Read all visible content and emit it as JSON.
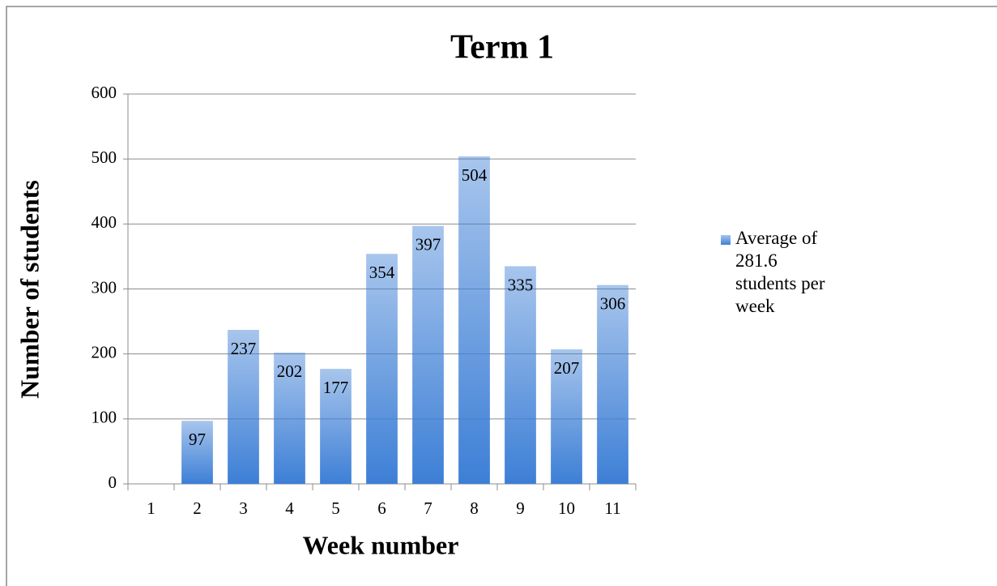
{
  "chart_data": {
    "type": "bar",
    "title": "Term 1",
    "x_label": "Week number",
    "y_label": "Number of students",
    "categories": [
      "1",
      "2",
      "3",
      "4",
      "5",
      "6",
      "7",
      "8",
      "9",
      "10",
      "11"
    ],
    "series": [
      {
        "name": "Average of 281.6 students per week",
        "color": "#3d7fd6",
        "values": [
          null,
          97,
          237,
          202,
          177,
          354,
          397,
          504,
          335,
          207,
          306
        ]
      }
    ],
    "ylim": [
      0,
      600
    ],
    "yticks": [
      0,
      100,
      200,
      300,
      400,
      500,
      600
    ],
    "grid": true,
    "legend": "right"
  }
}
